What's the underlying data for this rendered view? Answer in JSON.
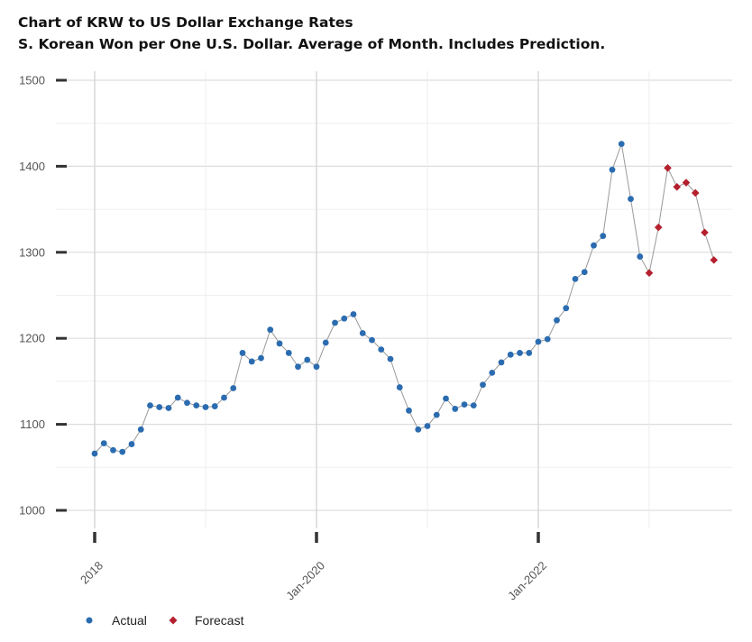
{
  "chart_data": {
    "type": "line",
    "title": "Chart of KRW to US Dollar Exchange Rates",
    "subtitle": "S. Korean Won per One U.S. Dollar.  Average of Month.  Includes Prediction.",
    "xlabel": "",
    "ylabel": "",
    "ylim": [
      1000,
      1500
    ],
    "y_ticks": [
      1000,
      1100,
      1200,
      1300,
      1400,
      1500
    ],
    "x_ticks": [
      "Jan-2018",
      "Jan-2020",
      "Jan-2022"
    ],
    "x_tick_labels_shown": [
      "2018",
      "Jan-2020",
      "Jan-2022"
    ],
    "grid": true,
    "legend_position": "bottom-left",
    "colors": {
      "actual": "#2b6cb0",
      "forecast": "#b5202e",
      "line": "#999999"
    },
    "series": [
      {
        "name": "Actual",
        "marker": "circle",
        "x": [
          "2018-01",
          "2018-02",
          "2018-03",
          "2018-04",
          "2018-05",
          "2018-06",
          "2018-07",
          "2018-08",
          "2018-09",
          "2018-10",
          "2018-11",
          "2018-12",
          "2019-01",
          "2019-02",
          "2019-03",
          "2019-04",
          "2019-05",
          "2019-06",
          "2019-07",
          "2019-08",
          "2019-09",
          "2019-10",
          "2019-11",
          "2019-12",
          "2020-01",
          "2020-02",
          "2020-03",
          "2020-04",
          "2020-05",
          "2020-06",
          "2020-07",
          "2020-08",
          "2020-09",
          "2020-10",
          "2020-11",
          "2020-12",
          "2021-01",
          "2021-02",
          "2021-03",
          "2021-04",
          "2021-05",
          "2021-06",
          "2021-07",
          "2021-08",
          "2021-09",
          "2021-10",
          "2021-11",
          "2021-12",
          "2022-01",
          "2022-02",
          "2022-03",
          "2022-04",
          "2022-05",
          "2022-06",
          "2022-07",
          "2022-08",
          "2022-09",
          "2022-10",
          "2022-11",
          "2022-12"
        ],
        "values": [
          1066,
          1078,
          1070,
          1068,
          1077,
          1094,
          1122,
          1120,
          1119,
          1131,
          1125,
          1122,
          1120,
          1121,
          1131,
          1142,
          1183,
          1173,
          1177,
          1210,
          1194,
          1183,
          1167,
          1175,
          1167,
          1195,
          1218,
          1223,
          1228,
          1206,
          1198,
          1187,
          1176,
          1143,
          1116,
          1094,
          1098,
          1111,
          1130,
          1118,
          1123,
          1122,
          1146,
          1160,
          1172,
          1181,
          1183,
          1183,
          1196,
          1199,
          1221,
          1235,
          1269,
          1277,
          1308,
          1319,
          1396,
          1426,
          1362,
          1295
        ]
      },
      {
        "name": "Forecast",
        "marker": "diamond",
        "x": [
          "2023-01",
          "2023-02",
          "2023-03",
          "2023-04",
          "2023-05",
          "2023-06",
          "2023-07",
          "2023-08"
        ],
        "values": [
          1276,
          1329,
          1398,
          1376,
          1381,
          1369,
          1323,
          1291
        ]
      }
    ]
  }
}
